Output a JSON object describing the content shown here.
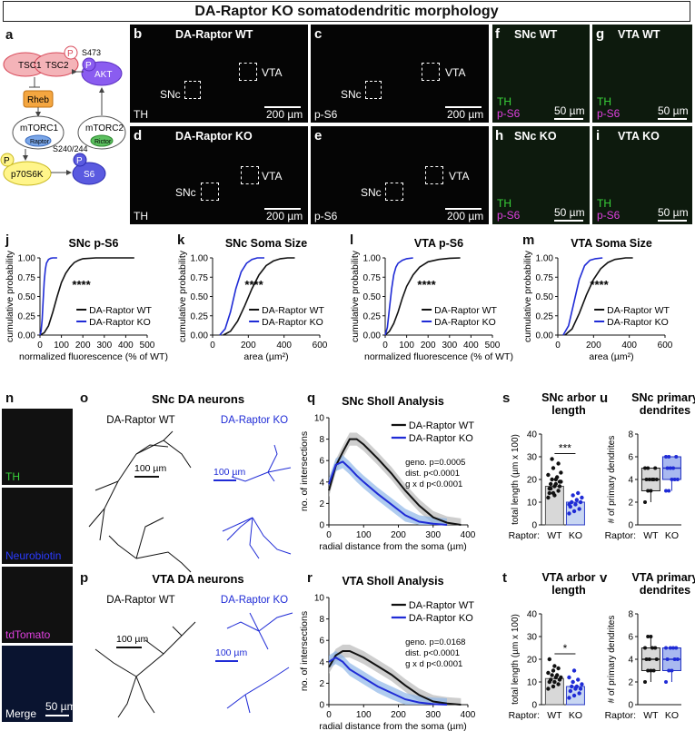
{
  "figure_title": "DA-Raptor KO somatodendritic morphology",
  "panel_labels": {
    "a": "a",
    "b": "b",
    "c": "c",
    "d": "d",
    "e": "e",
    "f": "f",
    "g": "g",
    "h": "h",
    "i": "i",
    "j": "j",
    "k": "k",
    "l": "l",
    "m": "m",
    "n": "n",
    "o": "o",
    "p": "p",
    "q": "q",
    "r": "r",
    "s": "s",
    "t": "t",
    "u": "u",
    "v": "v"
  },
  "pathway": {
    "tsc1": "TSC1",
    "tsc2": "TSC2",
    "p": "P",
    "akt": "AKT",
    "s473": "S473",
    "rheb": "Rheb",
    "mtorc1": "mTORC1",
    "raptor": "Raptor",
    "mtorc2": "mTORC2",
    "rictor": "Rictor",
    "p70s6k": "p70S6K",
    "s6": "S6",
    "s240": "S240/244"
  },
  "micrographs": {
    "b": {
      "title": "DA-Raptor WT",
      "stain": "TH",
      "scale": "200 µm",
      "snc": "SNc",
      "vta": "VTA"
    },
    "c": {
      "stain": "p-S6",
      "scale": "200 µm",
      "snc": "SNc",
      "vta": "VTA"
    },
    "d": {
      "title": "DA-Raptor KO",
      "stain": "TH",
      "scale": "200 µm",
      "snc": "SNc",
      "vta": "VTA"
    },
    "e": {
      "stain": "p-S6",
      "scale": "200 µm",
      "snc": "SNc",
      "vta": "VTA"
    },
    "f": {
      "title": "SNc WT",
      "th": "TH",
      "ps6": "p-S6",
      "scale": "50 µm"
    },
    "g": {
      "title": "VTA WT",
      "th": "TH",
      "ps6": "p-S6",
      "scale": "50 µm"
    },
    "h": {
      "title": "SNc KO",
      "th": "TH",
      "ps6": "p-S6",
      "scale": "50 µm"
    },
    "i": {
      "title": "VTA KO",
      "th": "TH",
      "ps6": "p-S6",
      "scale": "50 µm"
    },
    "n": {
      "th": "TH",
      "neurobiotin": "Neurobiotin",
      "tdtomato": "tdTomato",
      "merge": "Merge",
      "scale": "50 µm"
    }
  },
  "colors": {
    "wt": "#111111",
    "ko": "#1f2bd6",
    "ko_fill": "#8fb6e8",
    "wt_fill": "#b9b9b9",
    "th_green": "#39d33a",
    "magenta": "#e040e0",
    "neurobiotin_blue": "#2b3bff"
  },
  "neuron_tracings": {
    "o": {
      "title": "SNc DA neurons",
      "wt": "DA-Raptor WT",
      "ko": "DA-Raptor KO",
      "scale_wt": "100 µm",
      "scale_ko": "100 µm"
    },
    "p": {
      "title": "VTA DA neurons",
      "wt": "DA-Raptor WT",
      "ko": "DA-Raptor KO",
      "scale_wt": "100 µm",
      "scale_ko": "100 µm"
    }
  },
  "chart_data": [
    {
      "id": "j",
      "type": "line",
      "title": "SNc p-S6",
      "xlabel": "normalized fluorescence (% of WT)",
      "ylabel": "cumulative probability",
      "xlim": [
        0,
        500
      ],
      "ylim": [
        0,
        1
      ],
      "xticks": [
        0,
        100,
        200,
        300,
        400,
        500
      ],
      "yticks": [
        0.0,
        0.25,
        0.5,
        0.75,
        1.0
      ],
      "annotation": "****",
      "series": [
        {
          "name": "DA-Raptor WT",
          "x": [
            0,
            20,
            40,
            60,
            80,
            100,
            120,
            140,
            160,
            180,
            200,
            260,
            440
          ],
          "y": [
            0,
            0.03,
            0.12,
            0.3,
            0.5,
            0.68,
            0.8,
            0.88,
            0.94,
            0.97,
            0.99,
            1.0,
            1.0
          ]
        },
        {
          "name": "DA-Raptor KO",
          "x": [
            0,
            5,
            10,
            15,
            20,
            25,
            30,
            40,
            50,
            60,
            80
          ],
          "y": [
            0,
            0.05,
            0.2,
            0.45,
            0.7,
            0.85,
            0.93,
            0.98,
            0.995,
            1.0,
            1.0
          ]
        }
      ]
    },
    {
      "id": "k",
      "type": "line",
      "title": "SNc Soma Size",
      "xlabel": "area (µm²)",
      "ylabel": "cumulative probability",
      "xlim": [
        0,
        600
      ],
      "ylim": [
        0,
        1
      ],
      "xticks": [
        0,
        200,
        400,
        600
      ],
      "yticks": [
        0.0,
        0.25,
        0.5,
        0.75,
        1.0
      ],
      "annotation": "****",
      "series": [
        {
          "name": "DA-Raptor WT",
          "x": [
            60,
            100,
            140,
            180,
            220,
            260,
            300,
            340,
            380,
            420,
            460
          ],
          "y": [
            0,
            0.05,
            0.18,
            0.38,
            0.6,
            0.78,
            0.9,
            0.96,
            0.99,
            1.0,
            1.0
          ]
        },
        {
          "name": "DA-Raptor KO",
          "x": [
            40,
            70,
            100,
            130,
            160,
            190,
            220,
            250,
            290
          ],
          "y": [
            0,
            0.08,
            0.3,
            0.6,
            0.82,
            0.93,
            0.98,
            1.0,
            1.0
          ]
        }
      ]
    },
    {
      "id": "l",
      "type": "line",
      "title": "VTA p-S6",
      "xlabel": "normalized fluorescence (% of WT)",
      "ylabel": "cumulative probability",
      "xlim": [
        0,
        500
      ],
      "ylim": [
        0,
        1
      ],
      "xticks": [
        0,
        100,
        200,
        300,
        400,
        500
      ],
      "yticks": [
        0.0,
        0.25,
        0.5,
        0.75,
        1.0
      ],
      "annotation": "****",
      "series": [
        {
          "name": "DA-Raptor WT",
          "x": [
            0,
            20,
            40,
            60,
            80,
            100,
            130,
            160,
            200,
            250,
            300,
            350
          ],
          "y": [
            0,
            0.05,
            0.15,
            0.3,
            0.48,
            0.63,
            0.78,
            0.88,
            0.95,
            0.98,
            0.995,
            1.0
          ]
        },
        {
          "name": "DA-Raptor KO",
          "x": [
            0,
            10,
            20,
            30,
            40,
            50,
            60,
            80,
            100,
            130
          ],
          "y": [
            0,
            0.1,
            0.35,
            0.6,
            0.78,
            0.88,
            0.93,
            0.97,
            0.99,
            1.0
          ]
        }
      ]
    },
    {
      "id": "m",
      "type": "line",
      "title": "VTA Soma Size",
      "xlabel": "area (µm²)",
      "ylabel": "cumulative probability",
      "xlim": [
        0,
        600
      ],
      "ylim": [
        0,
        1
      ],
      "xticks": [
        0,
        200,
        400,
        600
      ],
      "yticks": [
        0.0,
        0.25,
        0.5,
        0.75,
        1.0
      ],
      "annotation": "****",
      "series": [
        {
          "name": "DA-Raptor WT",
          "x": [
            40,
            80,
            120,
            160,
            200,
            240,
            280,
            320,
            380,
            420
          ],
          "y": [
            0,
            0.08,
            0.28,
            0.52,
            0.72,
            0.86,
            0.94,
            0.98,
            1.0,
            1.0
          ]
        },
        {
          "name": "DA-Raptor KO",
          "x": [
            30,
            60,
            90,
            120,
            150,
            180,
            210,
            250
          ],
          "y": [
            0,
            0.12,
            0.42,
            0.72,
            0.9,
            0.97,
            0.99,
            1.0
          ]
        }
      ]
    },
    {
      "id": "q",
      "type": "line",
      "title": "SNc Sholl Analysis",
      "xlabel": "radial distance from the soma (µm)",
      "ylabel": "no. of intersections",
      "xlim": [
        0,
        400
      ],
      "ylim": [
        0,
        10
      ],
      "xticks": [
        0,
        100,
        200,
        300,
        400
      ],
      "yticks": [
        0,
        2,
        4,
        6,
        8,
        10
      ],
      "stats": [
        "geno. p=0.0005",
        "dist. p<0.0001",
        "g x d p<0.0001"
      ],
      "series": [
        {
          "name": "DA-Raptor WT",
          "x": [
            0,
            20,
            40,
            60,
            80,
            100,
            140,
            180,
            220,
            260,
            300,
            340,
            380
          ],
          "y": [
            3.2,
            5.5,
            6.8,
            8.0,
            8.0,
            7.5,
            6.2,
            4.8,
            3.2,
            1.8,
            0.7,
            0.2,
            0
          ]
        },
        {
          "name": "DA-Raptor KO",
          "x": [
            0,
            20,
            40,
            60,
            80,
            100,
            140,
            180,
            220,
            260,
            300,
            340
          ],
          "y": [
            3.8,
            5.6,
            5.9,
            5.3,
            4.6,
            4.0,
            2.9,
            1.9,
            0.9,
            0.3,
            0.1,
            0
          ]
        }
      ]
    },
    {
      "id": "r",
      "type": "line",
      "title": "VTA Sholl Analysis",
      "xlabel": "radial distance from the soma (µm)",
      "ylabel": "no. of intersections",
      "xlim": [
        0,
        400
      ],
      "ylim": [
        0,
        10
      ],
      "xticks": [
        0,
        100,
        200,
        300,
        400
      ],
      "yticks": [
        0,
        2,
        4,
        6,
        8,
        10
      ],
      "stats": [
        "geno. p=0.0168",
        "dist. p<0.0001",
        "g x d p<0.0001"
      ],
      "series": [
        {
          "name": "DA-Raptor WT",
          "x": [
            0,
            20,
            40,
            60,
            80,
            100,
            140,
            180,
            220,
            260,
            300,
            340,
            380
          ],
          "y": [
            3.5,
            4.6,
            5.0,
            5.0,
            4.7,
            4.4,
            3.6,
            2.8,
            1.8,
            0.9,
            0.3,
            0.1,
            0
          ]
        },
        {
          "name": "DA-Raptor KO",
          "x": [
            0,
            20,
            40,
            60,
            80,
            100,
            140,
            180,
            220,
            260,
            300,
            340
          ],
          "y": [
            4.0,
            4.4,
            4.0,
            3.3,
            2.9,
            2.5,
            1.7,
            1.1,
            0.5,
            0.2,
            0.05,
            0
          ]
        }
      ]
    },
    {
      "id": "s",
      "type": "bar",
      "title": "SNc arbor length",
      "ylabel": "total length (µm x 100)",
      "xlabel_prefix": "Raptor:",
      "categories": [
        "WT",
        "KO"
      ],
      "values": [
        17,
        10
      ],
      "ylim": [
        0,
        40
      ],
      "yticks": [
        0,
        10,
        20,
        30,
        40
      ],
      "annotation": "***",
      "points": [
        [
          12,
          14,
          15,
          16,
          17,
          17,
          18,
          18,
          19,
          20,
          21,
          22,
          25,
          27,
          14,
          13,
          19,
          16,
          20,
          23,
          29
        ],
        [
          5,
          6,
          7,
          8,
          9,
          10,
          10,
          11,
          12,
          13,
          14,
          9
        ]
      ]
    },
    {
      "id": "t",
      "type": "bar",
      "title": "VTA arbor length",
      "ylabel": "total length (µm x 100)",
      "xlabel_prefix": "Raptor:",
      "categories": [
        "WT",
        "KO"
      ],
      "values": [
        11.5,
        8
      ],
      "ylim": [
        0,
        40
      ],
      "yticks": [
        0,
        10,
        20,
        30,
        40
      ],
      "annotation": "*",
      "points": [
        [
          7,
          8,
          9,
          10,
          10,
          11,
          11,
          12,
          12,
          13,
          13,
          14,
          15,
          16,
          20,
          17
        ],
        [
          3,
          4,
          5,
          6,
          7,
          7,
          8,
          8,
          9,
          10,
          11,
          12,
          15
        ]
      ]
    },
    {
      "id": "u",
      "type": "box",
      "title": "SNc primary dendrites",
      "ylabel": "# of primary dendrites",
      "xlabel_prefix": "Raptor:",
      "categories": [
        "WT",
        "KO"
      ],
      "ylim": [
        0,
        8
      ],
      "yticks": [
        0,
        2,
        4,
        6,
        8
      ],
      "boxes": [
        {
          "min": 2,
          "q1": 3,
          "median": 4,
          "q3": 5,
          "max": 5
        },
        {
          "min": 3,
          "q1": 4,
          "median": 5,
          "q3": 6,
          "max": 6
        }
      ],
      "points": [
        [
          2,
          3,
          3,
          4,
          4,
          4,
          4,
          4,
          5,
          5,
          5
        ],
        [
          3,
          3,
          4,
          4,
          4,
          5,
          5,
          5,
          6,
          6,
          6
        ]
      ]
    },
    {
      "id": "v",
      "type": "box",
      "title": "VTA primary dendrites",
      "ylabel": "# of primary dendrites",
      "xlabel_prefix": "Raptor:",
      "categories": [
        "WT",
        "KO"
      ],
      "ylim": [
        0,
        8
      ],
      "yticks": [
        0,
        2,
        4,
        6,
        8
      ],
      "boxes": [
        {
          "min": 2,
          "q1": 3,
          "median": 4,
          "q3": 5,
          "max": 6
        },
        {
          "min": 2,
          "q1": 3,
          "median": 4,
          "q3": 5,
          "max": 5
        }
      ],
      "points": [
        [
          2,
          3,
          3,
          3,
          4,
          4,
          4,
          5,
          5,
          5,
          6,
          6
        ],
        [
          2,
          3,
          3,
          4,
          4,
          4,
          5,
          5,
          5,
          5
        ]
      ]
    }
  ]
}
